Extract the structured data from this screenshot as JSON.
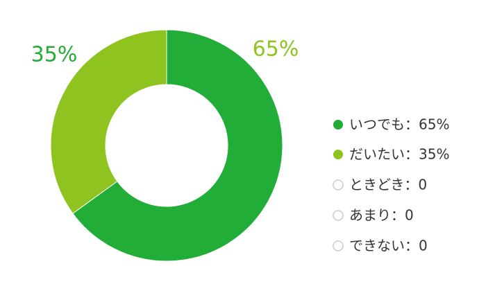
{
  "chart_data": {
    "type": "donut",
    "categories": [
      "いつでも：65%",
      "だいたい：35%",
      "ときどき：0",
      "あまり：0",
      "できない：0"
    ],
    "values": [
      65,
      35,
      0,
      0,
      0
    ],
    "value_labels": [
      "65%",
      "35%",
      null,
      null,
      null
    ],
    "colors": [
      "#22ac38",
      "#8fc31f",
      "#cccccc",
      "#cccccc",
      "#cccccc"
    ],
    "label_colors": [
      "#8fc31f",
      "#22ac38",
      null,
      null,
      null
    ],
    "legend": "right"
  }
}
